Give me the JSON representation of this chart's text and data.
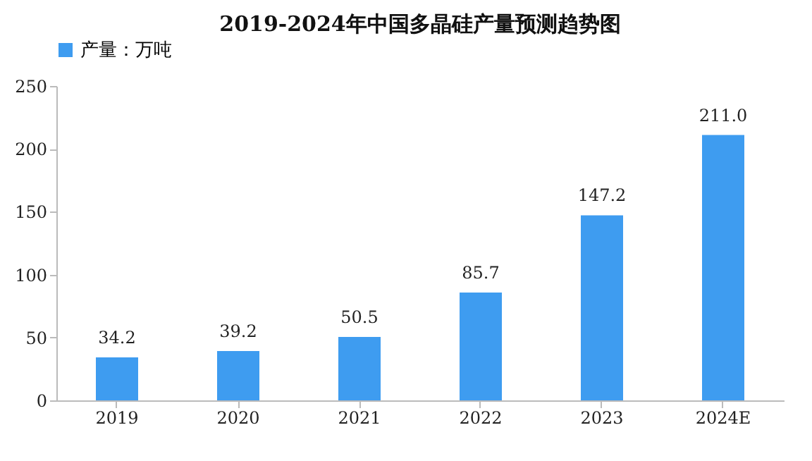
{
  "chart_data": {
    "type": "bar",
    "title": "2019-2024年中国多晶硅产量预测趋势图",
    "categories": [
      "2019",
      "2020",
      "2021",
      "2022",
      "2023",
      "2024E"
    ],
    "series": [
      {
        "name": "产量：万吨",
        "color": "#3e9cf0",
        "values": [
          34.2,
          39.2,
          50.5,
          85.7,
          147.2,
          211.0
        ]
      }
    ],
    "value_labels": [
      "34.2",
      "39.2",
      "50.5",
      "85.7",
      "147.2",
      "211.0"
    ],
    "ylim": [
      0,
      250
    ],
    "yticks": [
      0,
      50,
      100,
      150,
      200,
      250
    ],
    "grid": false,
    "legend": "top"
  }
}
